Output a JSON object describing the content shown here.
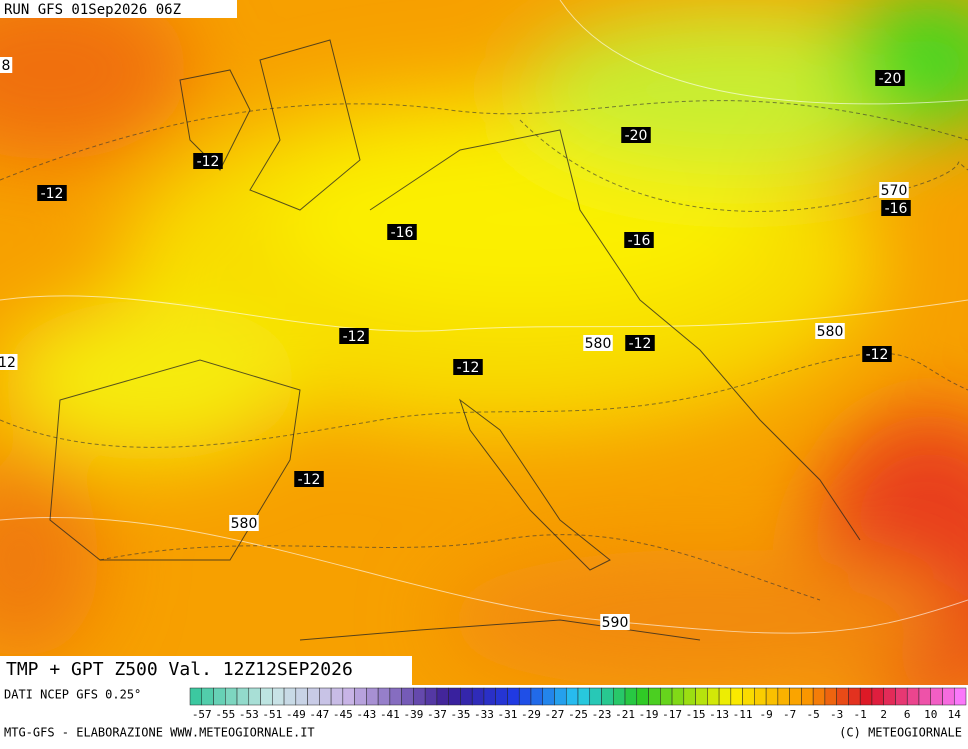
{
  "header": {
    "run": "RUN GFS 01Sep2026 06Z"
  },
  "title": "TMP + GPT Z500 Val. 12Z12SEP2026",
  "source": "DATI NCEP GFS 0.25°",
  "credit_left": "MTG-GFS - ELABORAZIONE WWW.METEOGIORNALE.IT",
  "credit_right": "(C) METEOGIORNALE",
  "temperature_labels": [
    "-20",
    "-20",
    "-12",
    "-12",
    "-16",
    "-16",
    "-16",
    "-12",
    "-12",
    "-12",
    "-12",
    "-12"
  ],
  "edge_labels": [
    "8",
    "12"
  ],
  "height_labels": [
    "570",
    "580",
    "580",
    "580",
    "590"
  ],
  "scale": {
    "labels": [
      -57,
      -55,
      -53,
      -51,
      -49,
      -47,
      -45,
      -43,
      -41,
      -39,
      -37,
      -35,
      -33,
      -31,
      -29,
      -27,
      -25,
      -23,
      -21,
      -19,
      -17,
      -15,
      -13,
      -11,
      -9,
      -7,
      -5,
      -3,
      -1,
      2,
      6,
      10,
      14
    ]
  }
}
